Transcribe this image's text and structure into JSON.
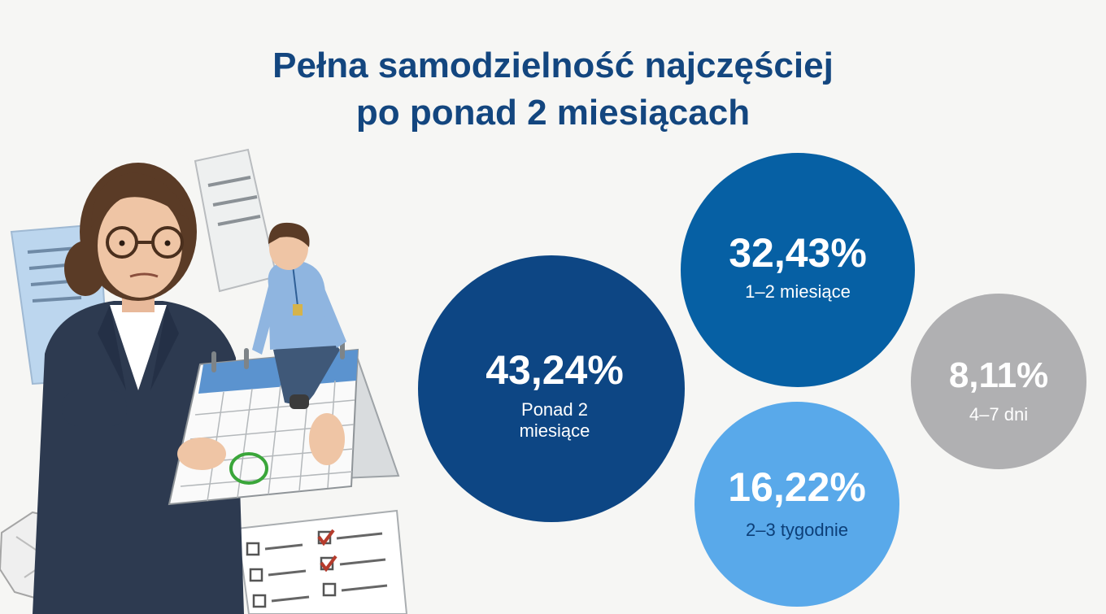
{
  "title": {
    "line1": "Pełna samodzielność najczęściej",
    "line2": "po ponad 2 miesiącach"
  },
  "chart_data": {
    "type": "bubble",
    "title": "Pełna samodzielność najczęściej po ponad 2 miesiącach",
    "series": [
      {
        "label_lines": [
          "Ponad 2",
          "miesiące"
        ],
        "value": 43.24,
        "value_label": "43,24%",
        "color": "#0d4684",
        "text_color": "#ffffff",
        "label_color": "#ffffff"
      },
      {
        "label_lines": [
          "1–2 miesiące"
        ],
        "value": 32.43,
        "value_label": "32,43%",
        "color": "#0660a4",
        "text_color": "#ffffff",
        "label_color": "#ffffff"
      },
      {
        "label_lines": [
          "2–3 tygodnie"
        ],
        "value": 16.22,
        "value_label": "16,22%",
        "color": "#59a9ea",
        "text_color": "#ffffff",
        "label_color": "#0d3f78"
      },
      {
        "label_lines": [
          "4–7 dni"
        ],
        "value": 8.11,
        "value_label": "8,11%",
        "color": "#b0b0b2",
        "text_color": "#ffffff",
        "label_color": "#ffffff"
      }
    ]
  },
  "illustration": {
    "icons": [
      "woman-holding-calendar-icon",
      "man-sitting-on-calendar-icon",
      "checklist-icon",
      "document-icon",
      "crumpled-paper-icon"
    ]
  }
}
